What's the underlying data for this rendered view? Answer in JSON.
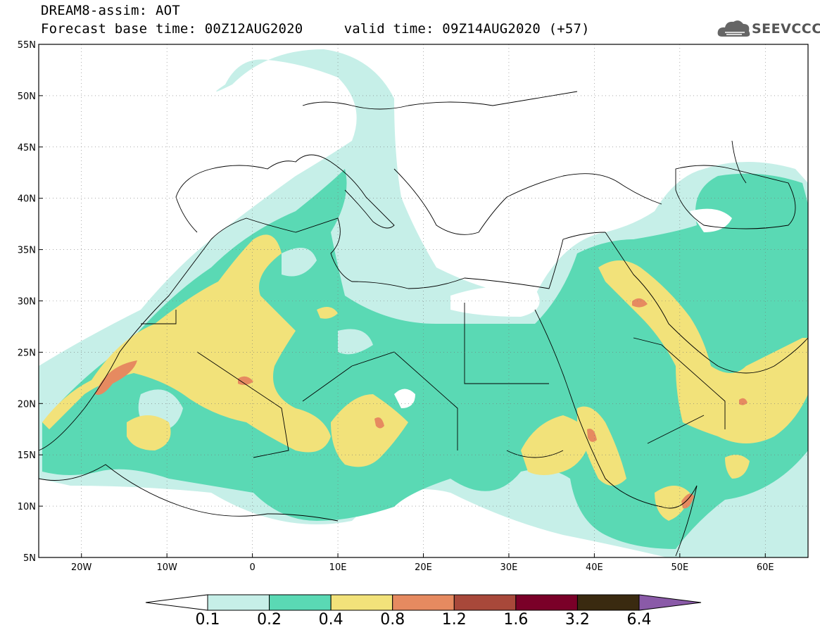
{
  "header": {
    "model_title": "DREAM8-assim: AOT",
    "forecast_line": "Forecast base time: 00Z12AUG2020     valid time: 09Z14AUG2020 (+57)",
    "logo_text": "SEEVCCC",
    "logo_icon": "cloud-icon"
  },
  "map": {
    "projection": "lat-lon",
    "lon_range": [
      -25,
      65
    ],
    "lat_range": [
      5,
      55
    ],
    "lon_ticks": [
      {
        "value": -20,
        "label": "20W"
      },
      {
        "value": -10,
        "label": "10W"
      },
      {
        "value": 0,
        "label": "0"
      },
      {
        "value": 10,
        "label": "10E"
      },
      {
        "value": 20,
        "label": "20E"
      },
      {
        "value": 30,
        "label": "30E"
      },
      {
        "value": 40,
        "label": "40E"
      },
      {
        "value": 50,
        "label": "50E"
      },
      {
        "value": 60,
        "label": "60E"
      }
    ],
    "lat_ticks": [
      {
        "value": 55,
        "label": "55N"
      },
      {
        "value": 50,
        "label": "50N"
      },
      {
        "value": 45,
        "label": "45N"
      },
      {
        "value": 40,
        "label": "40N"
      },
      {
        "value": 35,
        "label": "35N"
      },
      {
        "value": 30,
        "label": "30N"
      },
      {
        "value": 25,
        "label": "25N"
      },
      {
        "value": 20,
        "label": "20N"
      },
      {
        "value": 15,
        "label": "15N"
      },
      {
        "value": 10,
        "label": "10N"
      },
      {
        "value": 5,
        "label": "5N"
      }
    ],
    "grid": "dotted"
  },
  "colorbar": {
    "levels": [
      "0.1",
      "0.2",
      "0.4",
      "0.8",
      "1.2",
      "1.6",
      "3.2",
      "6.4"
    ],
    "colors": [
      "#ffffff",
      "#c6efe8",
      "#5ad9b4",
      "#f2e27a",
      "#e68a60",
      "#a8483a",
      "#7a0028",
      "#3a2a10",
      "#8a5aa8"
    ]
  }
}
